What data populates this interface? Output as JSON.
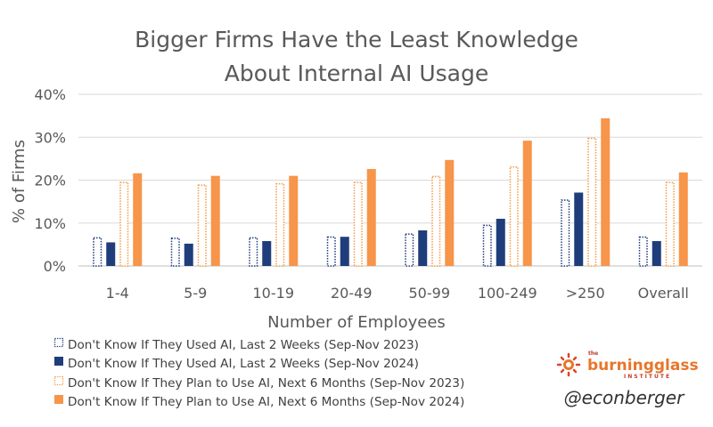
{
  "chart_data": {
    "type": "bar",
    "title_line1": "Bigger Firms Have the Least Knowledge",
    "title_line2": "About Internal AI Usage",
    "xlabel": "Number of Employees",
    "ylabel": "% of Firms",
    "ylim": [
      0,
      40
    ],
    "yticks": [
      "0%",
      "10%",
      "20%",
      "30%",
      "40%"
    ],
    "grid": true,
    "legend_position": "bottom-left",
    "categories": [
      "1-4",
      "5-9",
      "10-19",
      "20-49",
      "50-99",
      "100-249",
      ">250",
      "Overall"
    ],
    "series": [
      {
        "name": "Don't Know If They Used AI, Last 2 Weeks (Sep-Nov 2023)",
        "color": "#1f3d7a",
        "style": "dotted",
        "values": [
          6.7,
          6.6,
          6.7,
          6.9,
          7.6,
          9.6,
          15.5,
          6.9
        ]
      },
      {
        "name": "Don't Know If They Used AI, Last 2 Weeks (Sep-Nov 2024)",
        "color": "#1f3d7a",
        "style": "solid",
        "values": [
          5.5,
          5.2,
          5.8,
          6.8,
          8.3,
          11.0,
          17.1,
          5.8
        ]
      },
      {
        "name": "Don't Know If They Plan to Use AI, Next 6 Months (Sep-Nov 2023)",
        "color": "#f39a44",
        "style": "dotted",
        "values": [
          19.6,
          19.0,
          19.3,
          19.6,
          21.0,
          23.2,
          29.9,
          19.6
        ]
      },
      {
        "name": "Don't Know If They Plan to Use AI, Next 6 Months (Sep-Nov 2024)",
        "color": "#f7954a",
        "style": "solid",
        "values": [
          21.6,
          21.0,
          21.0,
          22.6,
          24.7,
          29.2,
          34.4,
          21.8
        ]
      }
    ]
  },
  "branding": {
    "logo_main": "burningglass",
    "logo_prefix": "the",
    "logo_sub": "INSTITUTE",
    "handle": "@econberger",
    "logo_icon": "sunburst-logo-icon"
  }
}
